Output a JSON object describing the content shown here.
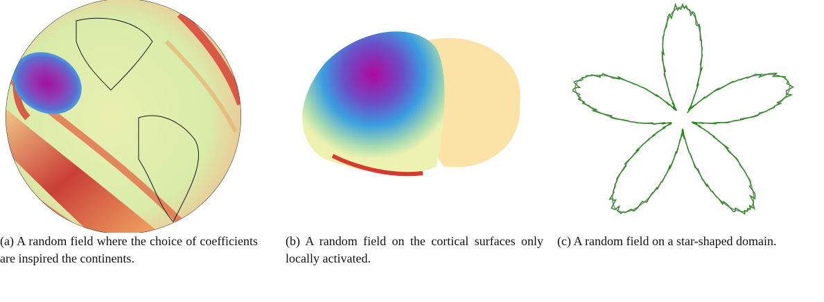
{
  "figure": {
    "panels": [
      {
        "caption": "(a) A random field where the choice of coefficients are inspired the continents."
      },
      {
        "caption": "(b) A random field on the cortical surfaces only locally activated."
      },
      {
        "caption": "(c) A random field on a star-shaped domain."
      }
    ]
  }
}
